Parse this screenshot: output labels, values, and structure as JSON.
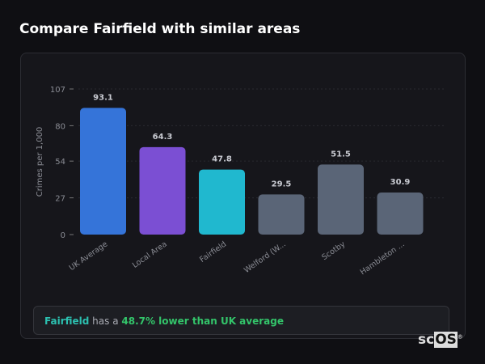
{
  "title": "Compare Fairfield with similar areas",
  "chart_data": {
    "type": "bar",
    "categories": [
      "UK Average",
      "Local Area",
      "Fairfield",
      "Welford (W...",
      "Scotby",
      "Hambleton ..."
    ],
    "values": [
      93.1,
      64.3,
      47.8,
      29.5,
      51.5,
      30.9
    ],
    "colors": [
      "#3574d9",
      "#7b4fd3",
      "#20b8cf",
      "#5a6577",
      "#5a6577",
      "#5a6577"
    ],
    "ylabel": "Crimes per 1,000",
    "ylim": [
      0,
      107
    ],
    "yticks": [
      0,
      27,
      54,
      80,
      107
    ],
    "grid": true
  },
  "summary": {
    "area": "Fairfield",
    "middle": " has a ",
    "comparison": "48.7% lower than UK average"
  },
  "logo": {
    "text_a": "sc",
    "text_b": "OS",
    "mark": "®"
  }
}
